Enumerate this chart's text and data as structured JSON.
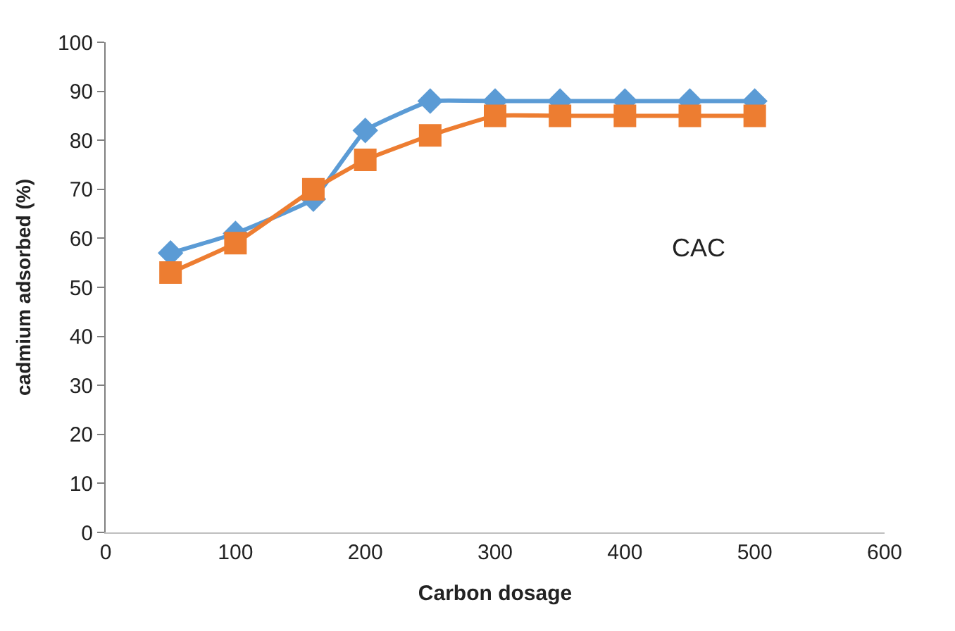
{
  "chart_data": {
    "type": "line",
    "xlabel": "Carbon dosage",
    "ylabel": "cadmium adsorbed (%)",
    "x": [
      50,
      100,
      160,
      200,
      250,
      300,
      350,
      400,
      450,
      500
    ],
    "series": [
      {
        "color": "#5b9bd5",
        "marker": "diamond",
        "values": [
          57,
          61,
          68,
          82,
          88,
          88,
          88,
          88,
          88,
          88
        ]
      },
      {
        "color": "#ed7d31",
        "marker": "square",
        "values": [
          53,
          59,
          70,
          76,
          81,
          85,
          85,
          85,
          85,
          85
        ]
      }
    ],
    "xlim": [
      0,
      600
    ],
    "xticks": [
      0,
      100,
      200,
      300,
      400,
      500,
      600
    ],
    "ylim": [
      0,
      100
    ],
    "yticks": [
      0,
      10,
      20,
      30,
      40,
      50,
      60,
      70,
      80,
      90,
      100
    ],
    "annotations": [
      "CAC"
    ]
  }
}
